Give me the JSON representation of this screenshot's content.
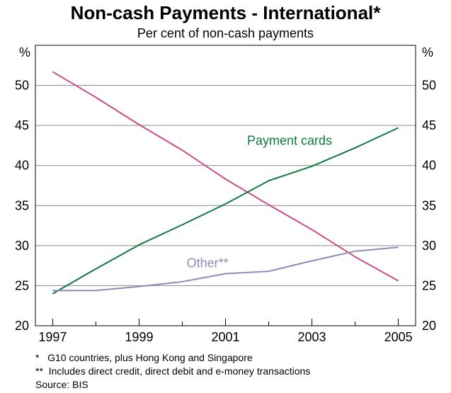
{
  "title": "Non-cash Payments - International*",
  "subtitle": "Per cent of non-cash payments",
  "chart_data": {
    "type": "line",
    "title": "Non-cash Payments - International*",
    "subtitle": "Per cent of non-cash payments",
    "y_unit_left": "%",
    "y_unit_right": "%",
    "ylim": [
      20,
      55
    ],
    "yticks": [
      20,
      25,
      30,
      35,
      40,
      45,
      50
    ],
    "xlim": [
      1996.6,
      2005.4
    ],
    "xticks": [
      1997,
      1999,
      2001,
      2003,
      2005
    ],
    "grid": true,
    "x": [
      1997,
      1998,
      1999,
      2000,
      2001,
      2002,
      2003,
      2004,
      2005
    ],
    "series": [
      {
        "label": "",
        "color": "#cc4c87",
        "values": [
          51.7,
          48.5,
          45.1,
          41.9,
          38.3,
          35.1,
          32.0,
          28.6,
          25.6
        ]
      },
      {
        "label": "Payment cards",
        "color": "#0f7a3e",
        "values": [
          24.0,
          27.1,
          30.1,
          32.6,
          35.2,
          38.1,
          39.9,
          42.2,
          44.7
        ]
      },
      {
        "label": "Other**",
        "color": "#9388bb",
        "values": [
          24.4,
          24.4,
          24.9,
          25.5,
          26.5,
          26.8,
          28.1,
          29.3,
          29.8
        ]
      }
    ]
  },
  "footnotes": [
    "*   G10 countries, plus Hong Kong and Singapore",
    "**  Includes direct credit, direct debit and e-money transactions",
    "Source: BIS"
  ]
}
